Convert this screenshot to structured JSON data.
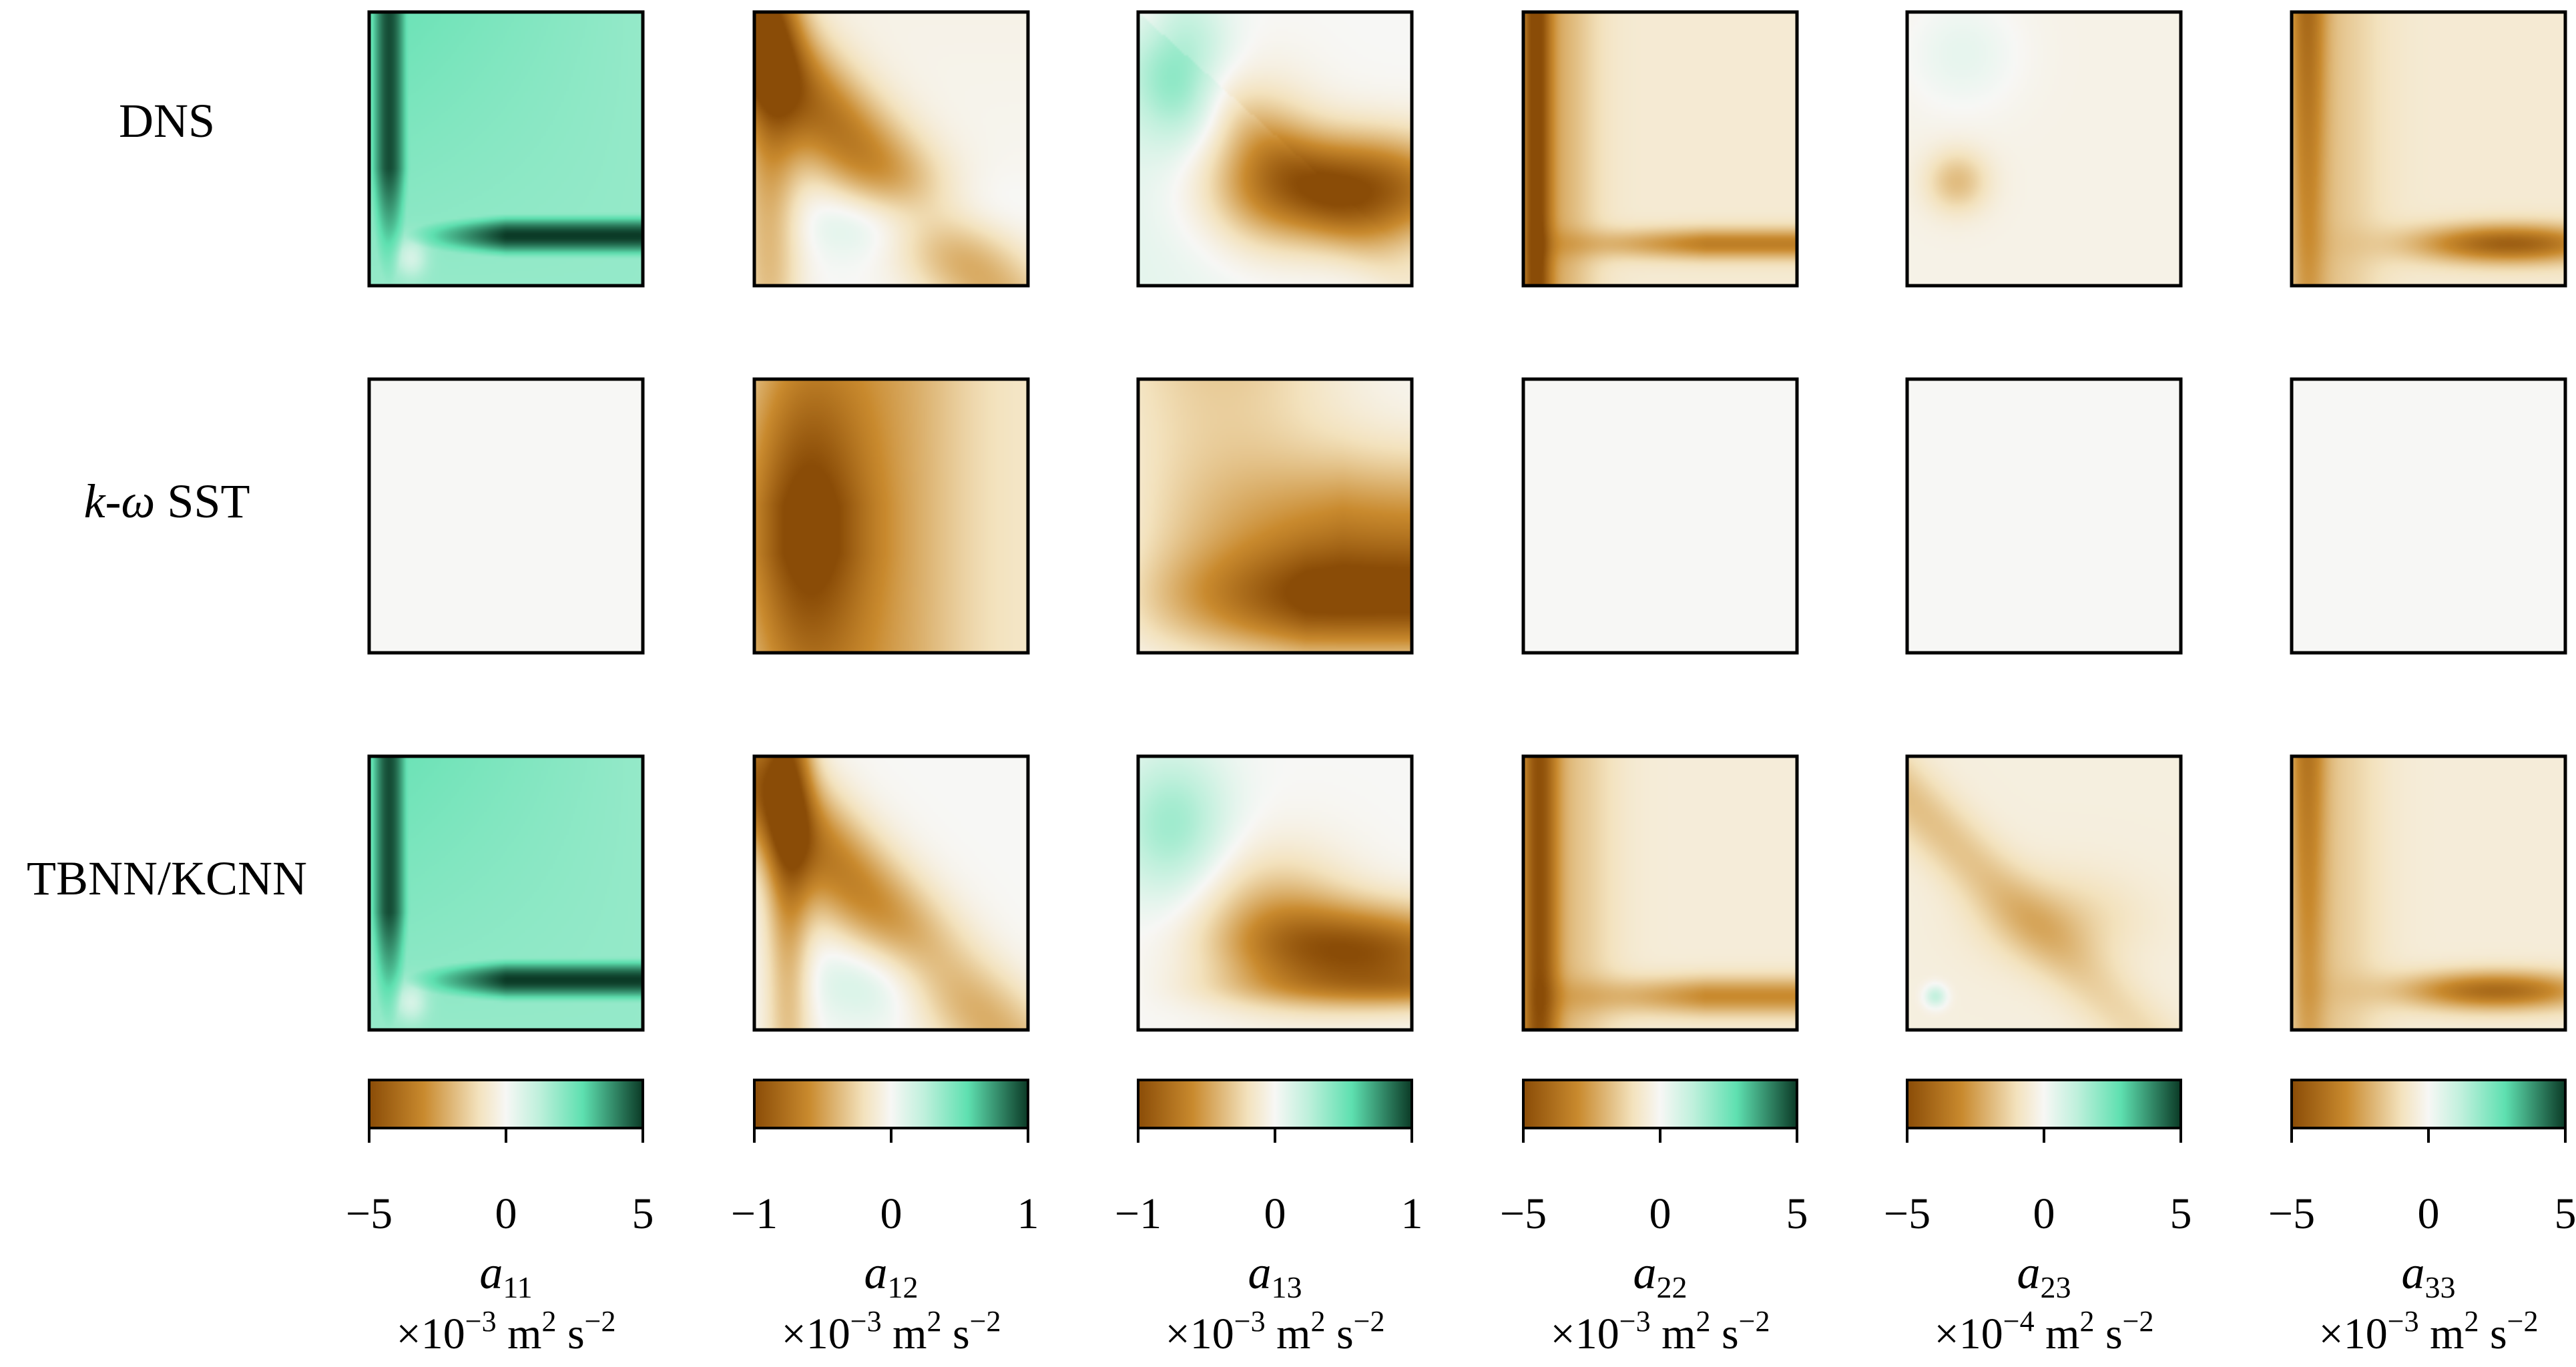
{
  "figure": {
    "row_labels": [
      "DNS",
      "k-ω SST",
      "TBNN/KCNN"
    ],
    "row_label_parts": [
      [
        {
          "text": "DNS",
          "italic": false
        }
      ],
      [
        {
          "text": "k",
          "italic": true
        },
        {
          "text": "-",
          "italic": false
        },
        {
          "text": "ω",
          "italic": true
        },
        {
          "text": " SST",
          "italic": false
        }
      ],
      [
        {
          "text": "TBNN/KCNN",
          "italic": false
        }
      ]
    ]
  },
  "colormap": {
    "name": "BrBG-like diverging",
    "stops": [
      [
        0.0,
        "#8a4c07"
      ],
      [
        0.2,
        "#c98a2e"
      ],
      [
        0.4,
        "#f3e2bd"
      ],
      [
        0.5,
        "#f7f7f5"
      ],
      [
        0.62,
        "#bff0dc"
      ],
      [
        0.78,
        "#5ee0b0"
      ],
      [
        1.0,
        "#0b3a26"
      ]
    ]
  },
  "chart_data": [
    {
      "type": "heatmap",
      "variable": "a",
      "subscript": "11",
      "unit_prefix": "×10",
      "unit_exp": "−3",
      "unit_rest": " m",
      "unit_m_exp": "2",
      "unit_s": " s",
      "unit_s_exp": "−2",
      "colorbar_range": [
        -5,
        5
      ],
      "ticks": [
        "−5",
        "0",
        "5"
      ],
      "rows": {
        "DNS": "a11_dns",
        "k-ω SST": "uniform_zero",
        "TBNN/KCNN": "a11_dns"
      }
    },
    {
      "type": "heatmap",
      "variable": "a",
      "subscript": "12",
      "unit_prefix": "×10",
      "unit_exp": "−3",
      "unit_rest": " m",
      "unit_m_exp": "2",
      "unit_s": " s",
      "unit_s_exp": "−2",
      "colorbar_range": [
        -1,
        1
      ],
      "ticks": [
        "−1",
        "0",
        "1"
      ],
      "rows": {
        "DNS": "a12_dns",
        "k-ω SST": "a12_sst",
        "TBNN/KCNN": "a12_tbnn"
      }
    },
    {
      "type": "heatmap",
      "variable": "a",
      "subscript": "13",
      "unit_prefix": "×10",
      "unit_exp": "−3",
      "unit_rest": " m",
      "unit_m_exp": "2",
      "unit_s": " s",
      "unit_s_exp": "−2",
      "colorbar_range": [
        -1,
        1
      ],
      "ticks": [
        "−1",
        "0",
        "1"
      ],
      "rows": {
        "DNS": "a13_dns",
        "k-ω SST": "a13_sst",
        "TBNN/KCNN": "a13_tbnn"
      }
    },
    {
      "type": "heatmap",
      "variable": "a",
      "subscript": "22",
      "unit_prefix": "×10",
      "unit_exp": "−3",
      "unit_rest": " m",
      "unit_m_exp": "2",
      "unit_s": " s",
      "unit_s_exp": "−2",
      "colorbar_range": [
        -5,
        5
      ],
      "ticks": [
        "−5",
        "0",
        "5"
      ],
      "rows": {
        "DNS": "a22_dns",
        "k-ω SST": "uniform_zero",
        "TBNN/KCNN": "a22_tbnn"
      }
    },
    {
      "type": "heatmap",
      "variable": "a",
      "subscript": "23",
      "unit_prefix": "×10",
      "unit_exp": "−4",
      "unit_rest": " m",
      "unit_m_exp": "2",
      "unit_s": " s",
      "unit_s_exp": "−2",
      "colorbar_range": [
        -5,
        5
      ],
      "ticks": [
        "−5",
        "0",
        "5"
      ],
      "rows": {
        "DNS": "a23_dns",
        "k-ω SST": "uniform_zero",
        "TBNN/KCNN": "a23_tbnn"
      }
    },
    {
      "type": "heatmap",
      "variable": "a",
      "subscript": "33",
      "unit_prefix": "×10",
      "unit_exp": "−3",
      "unit_rest": " m",
      "unit_m_exp": "2",
      "unit_s": " s",
      "unit_s_exp": "−2",
      "colorbar_range": [
        -5,
        5
      ],
      "ticks": [
        "−5",
        "0",
        "5"
      ],
      "rows": {
        "DNS": "a33_dns",
        "k-ω SST": "uniform_zero",
        "TBNN/KCNN": "a33_tbnn"
      }
    }
  ]
}
